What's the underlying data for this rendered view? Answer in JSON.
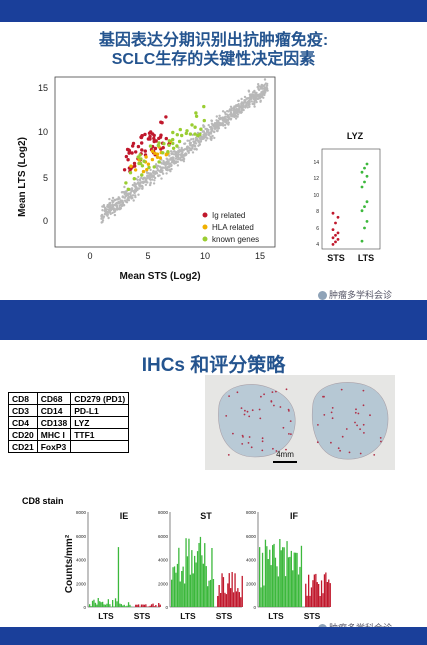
{
  "slide1": {
    "title_line1": "基因表达分期识别出抗肿瘤免疫:",
    "title_line2": "SCLC生存的关键性决定因素",
    "scatter": {
      "ylabel": "Mean LTS (Log2)",
      "xlabel": "Mean STS (Log2)",
      "x_ticks": [
        "0",
        "5",
        "10",
        "15"
      ],
      "y_ticks": [
        "0",
        "5",
        "10",
        "15"
      ],
      "legend": [
        {
          "label": "Ig related",
          "color": "#c0182c"
        },
        {
          "label": "HLA related",
          "color": "#f0b000"
        },
        {
          "label": "known genes",
          "color": "#9acd32"
        }
      ]
    },
    "lyz": {
      "title": "LYZ",
      "y_ticks": [
        "4",
        "6",
        "8",
        "10",
        "12",
        "14"
      ],
      "groups": [
        "STS",
        "LTS"
      ]
    },
    "watermark": "肿瘤多学科会诊"
  },
  "slide2": {
    "title": "IHCs 和评分策略",
    "table": [
      [
        "CD8",
        "CD68",
        "CD279 (PD1)"
      ],
      [
        "CD3",
        "CD14",
        "PD-L1"
      ],
      [
        "CD4",
        "CD138",
        "LYZ"
      ],
      [
        "CD20",
        "MHC I",
        "TTF1"
      ],
      [
        "CD21",
        "FoxP3",
        ""
      ]
    ],
    "scale_bar": "4mm",
    "stain_label": "CD8 stain",
    "bar_ylabel": "Counts/mm²",
    "panels": [
      {
        "title": "IE",
        "x_labels": [
          "LTS",
          "STS"
        ],
        "y_ticks": [
          "0",
          "2000",
          "4000",
          "6000",
          "8000"
        ]
      },
      {
        "title": "ST",
        "x_labels": [
          "LTS",
          "STS"
        ],
        "y_ticks": [
          "0",
          "2000",
          "4000",
          "6000",
          "8000"
        ]
      },
      {
        "title": "IF",
        "x_labels": [
          "LTS",
          "STS"
        ],
        "y_ticks": [
          "0",
          "2000",
          "4000",
          "6000",
          "8000"
        ]
      }
    ],
    "watermark": "肿瘤多学科会诊"
  },
  "colors": {
    "band": "#1a3f9a",
    "title": "#24548f",
    "lts_bar": "#3cb83c",
    "sts_bar": "#c0182c"
  }
}
